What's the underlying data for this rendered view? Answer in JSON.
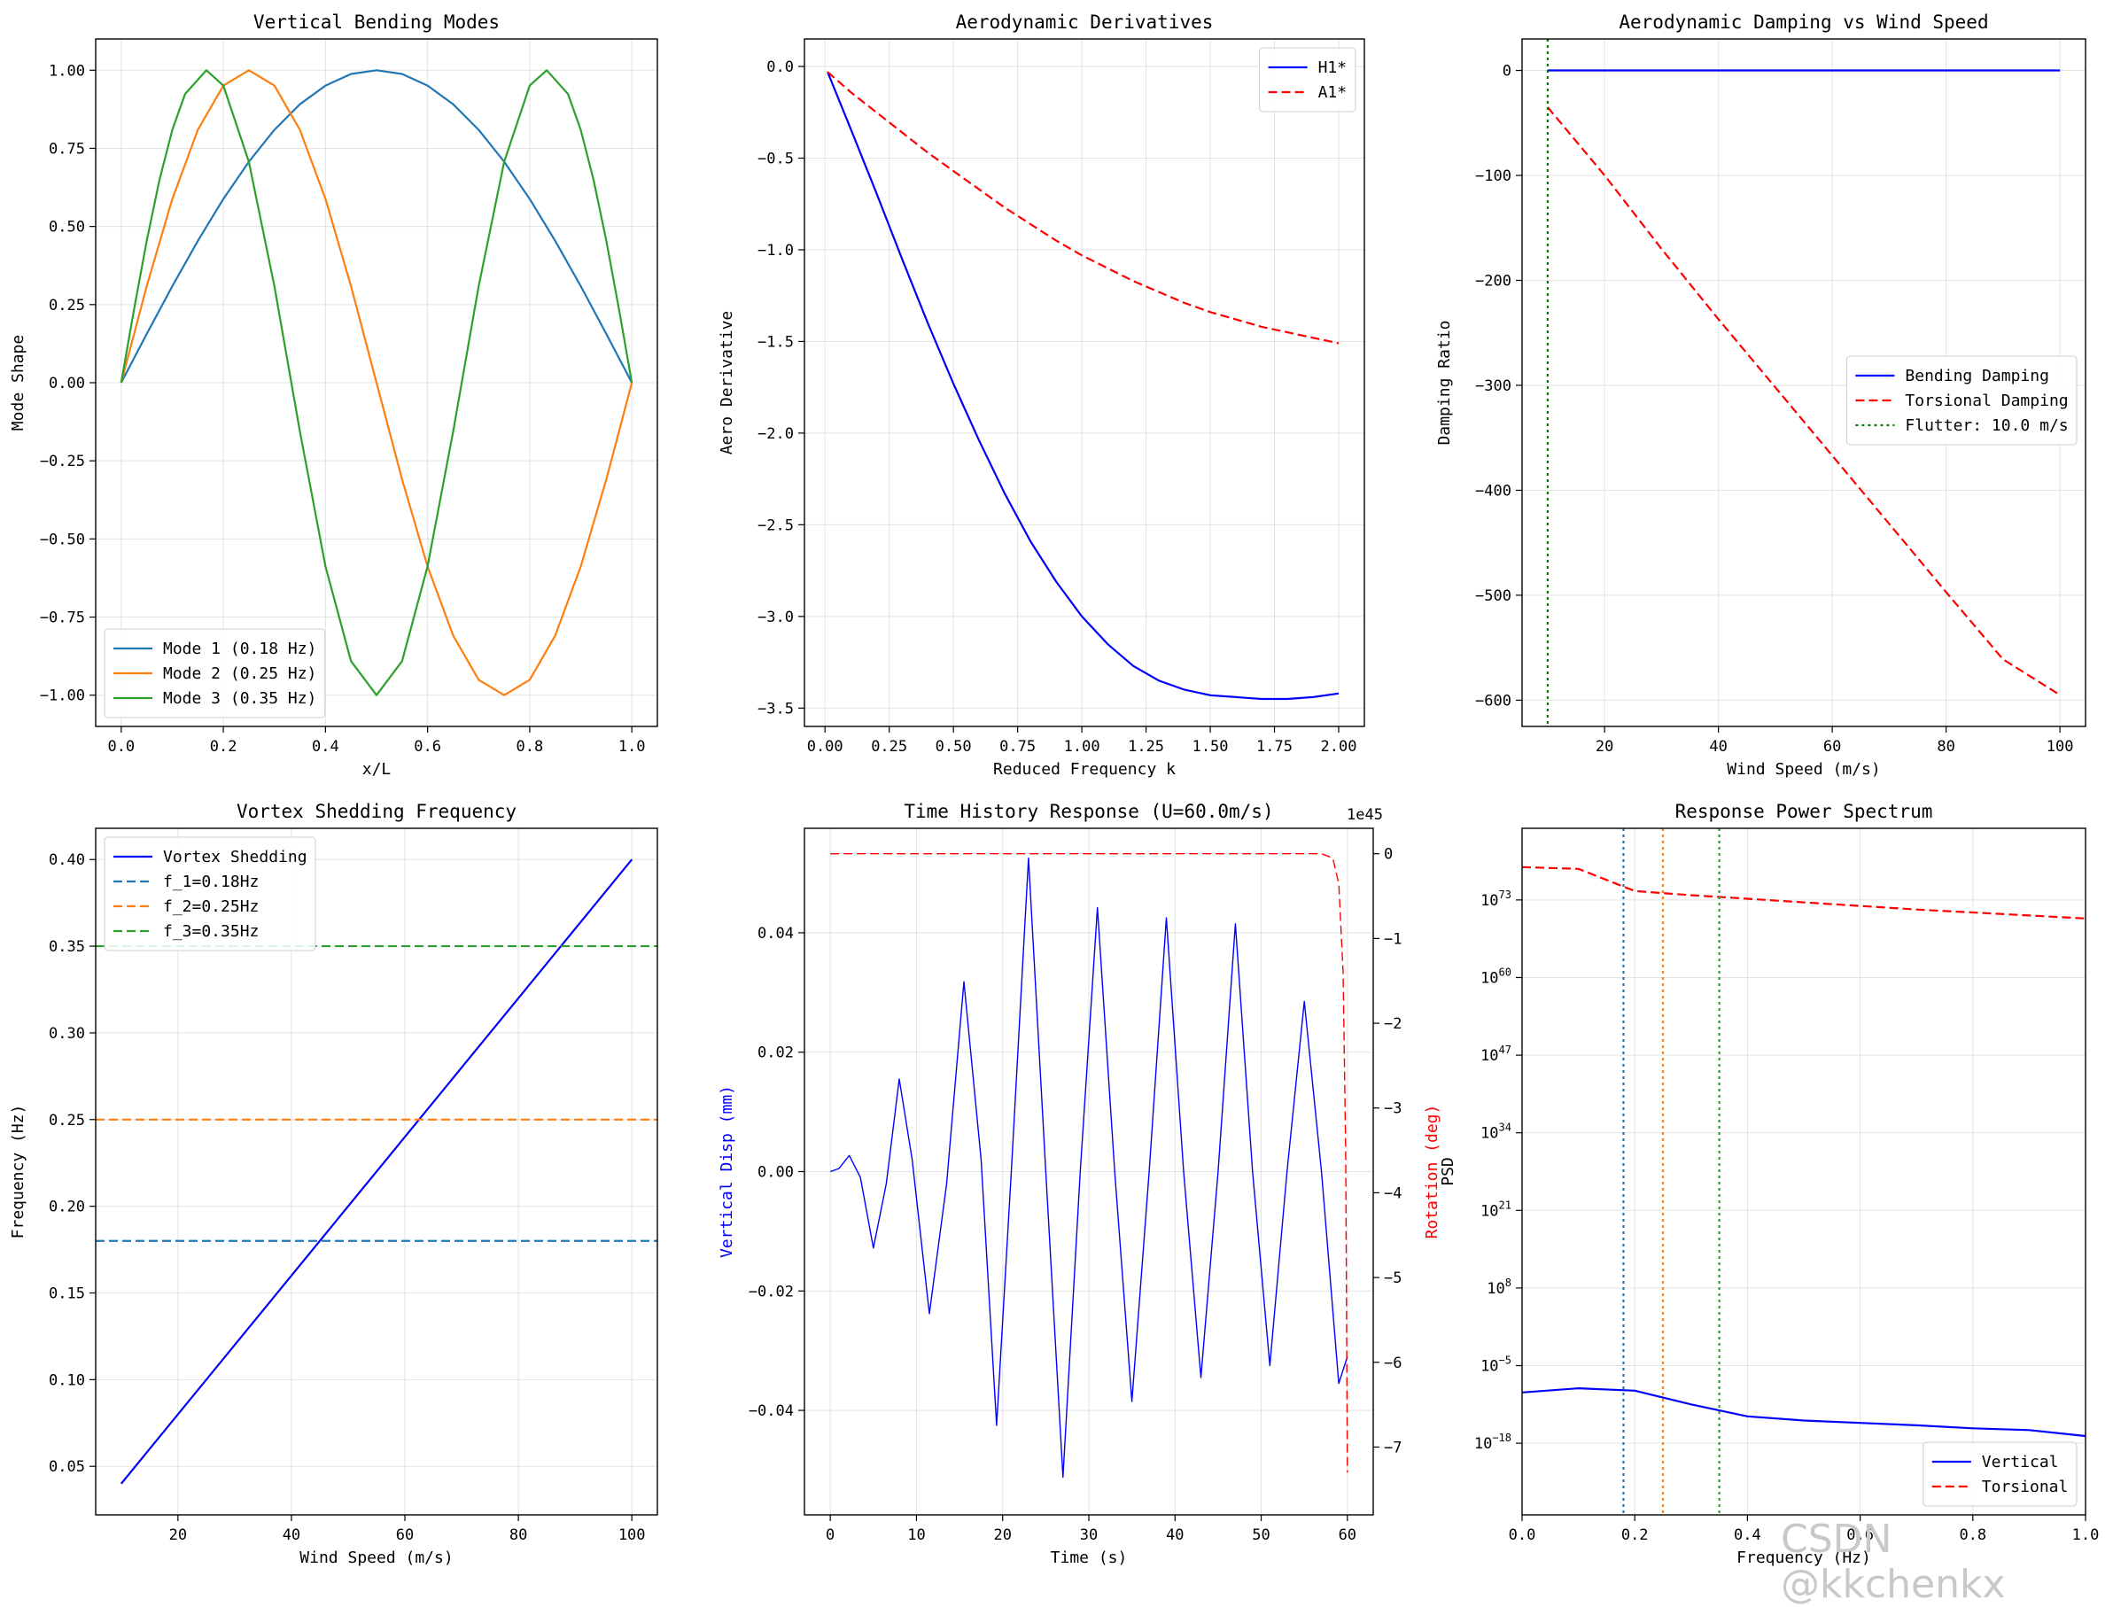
{
  "watermark": "CSDN @kkchenkx",
  "chart_data": [
    {
      "id": "vertical-bending-modes",
      "type": "line",
      "title": "Vertical Bending Modes",
      "xlabel": "x/L",
      "ylabel": "Mode Shape",
      "xlim": [
        -0.05,
        1.05
      ],
      "ylim": [
        -1.1,
        1.1
      ],
      "xticks": [
        0.0,
        0.2,
        0.4,
        0.6,
        0.8,
        1.0
      ],
      "xtick_labels": [
        "0.0",
        "0.2",
        "0.4",
        "0.6",
        "0.8",
        "1.0"
      ],
      "yticks": [
        1.0,
        0.75,
        0.5,
        0.25,
        0.0,
        -0.25,
        -0.5,
        -0.75,
        -1.0
      ],
      "ytick_labels": [
        "1.00",
        "0.75",
        "0.50",
        "0.25",
        "0.00",
        "−0.25",
        "−0.50",
        "−0.75",
        "−1.00"
      ],
      "grid": true,
      "legend": "lower-left",
      "series": [
        {
          "name": "Mode 1 (0.18 Hz)",
          "color": "#1f77b4",
          "style": "solid",
          "x": [
            0,
            0.05,
            0.1,
            0.15,
            0.2,
            0.25,
            0.3,
            0.35,
            0.4,
            0.45,
            0.5,
            0.55,
            0.6,
            0.65,
            0.7,
            0.75,
            0.8,
            0.85,
            0.9,
            0.95,
            1.0
          ],
          "y": [
            0,
            0.156,
            0.309,
            0.454,
            0.588,
            0.707,
            0.809,
            0.891,
            0.951,
            0.988,
            1.0,
            0.988,
            0.951,
            0.891,
            0.809,
            0.707,
            0.588,
            0.454,
            0.309,
            0.156,
            0
          ]
        },
        {
          "name": "Mode 2 (0.25 Hz)",
          "color": "#ff7f0e",
          "style": "solid",
          "x": [
            0,
            0.05,
            0.1,
            0.15,
            0.2,
            0.25,
            0.3,
            0.35,
            0.4,
            0.45,
            0.5,
            0.55,
            0.6,
            0.65,
            0.7,
            0.75,
            0.8,
            0.85,
            0.9,
            0.95,
            1.0
          ],
          "y": [
            0,
            0.309,
            0.588,
            0.809,
            0.951,
            1.0,
            0.951,
            0.809,
            0.588,
            0.309,
            0,
            -0.309,
            -0.588,
            -0.809,
            -0.951,
            -1.0,
            -0.951,
            -0.809,
            -0.588,
            -0.309,
            0
          ]
        },
        {
          "name": "Mode 3 (0.35 Hz)",
          "color": "#2ca02c",
          "style": "solid",
          "x": [
            0,
            0.025,
            0.05,
            0.075,
            0.1,
            0.125,
            0.1667,
            0.2,
            0.25,
            0.3,
            0.35,
            0.4,
            0.45,
            0.5,
            0.55,
            0.6,
            0.65,
            0.7,
            0.75,
            0.8,
            0.8333,
            0.875,
            0.9,
            0.925,
            0.95,
            0.975,
            1.0
          ],
          "y": [
            0,
            0.233,
            0.454,
            0.649,
            0.809,
            0.924,
            1.0,
            0.951,
            0.707,
            0.309,
            -0.156,
            -0.588,
            -0.891,
            -1.0,
            -0.891,
            -0.588,
            -0.156,
            0.309,
            0.707,
            0.951,
            1.0,
            0.924,
            0.809,
            0.649,
            0.454,
            0.233,
            0
          ]
        }
      ]
    },
    {
      "id": "aerodynamic-derivatives",
      "type": "line",
      "title": "Aerodynamic Derivatives",
      "xlabel": "Reduced Frequency k",
      "ylabel": "Aero Derivative",
      "xlim": [
        -0.08,
        2.1
      ],
      "ylim": [
        -3.6,
        0.15
      ],
      "xticks": [
        0.0,
        0.25,
        0.5,
        0.75,
        1.0,
        1.25,
        1.5,
        1.75,
        2.0
      ],
      "xtick_labels": [
        "0.00",
        "0.25",
        "0.50",
        "0.75",
        "1.00",
        "1.25",
        "1.50",
        "1.75",
        "2.00"
      ],
      "yticks": [
        0.0,
        -0.5,
        -1.0,
        -1.5,
        -2.0,
        -2.5,
        -3.0,
        -3.5
      ],
      "ytick_labels": [
        "0.0",
        "−0.5",
        "−1.0",
        "−1.5",
        "−2.0",
        "−2.5",
        "−3.0",
        "−3.5"
      ],
      "grid": true,
      "legend": "top-right",
      "series": [
        {
          "name": "H1*",
          "color": "#0000ff",
          "style": "solid",
          "x": [
            0.01,
            0.1,
            0.2,
            0.3,
            0.4,
            0.5,
            0.6,
            0.7,
            0.8,
            0.9,
            1.0,
            1.1,
            1.2,
            1.3,
            1.4,
            1.5,
            1.6,
            1.7,
            1.8,
            1.9,
            2.0
          ],
          "y": [
            -0.03,
            -0.34,
            -0.69,
            -1.05,
            -1.4,
            -1.73,
            -2.04,
            -2.33,
            -2.59,
            -2.81,
            -3.0,
            -3.15,
            -3.27,
            -3.35,
            -3.4,
            -3.43,
            -3.44,
            -3.45,
            -3.45,
            -3.44,
            -3.42
          ]
        },
        {
          "name": "A1*",
          "color": "#ff0000",
          "style": "dashed",
          "x": [
            0.01,
            0.1,
            0.2,
            0.3,
            0.4,
            0.5,
            0.6,
            0.7,
            0.8,
            0.9,
            1.0,
            1.1,
            1.2,
            1.3,
            1.4,
            1.5,
            1.6,
            1.7,
            1.8,
            1.9,
            2.0
          ],
          "y": [
            -0.03,
            -0.14,
            -0.25,
            -0.36,
            -0.47,
            -0.57,
            -0.67,
            -0.77,
            -0.86,
            -0.95,
            -1.03,
            -1.1,
            -1.17,
            -1.23,
            -1.29,
            -1.34,
            -1.38,
            -1.42,
            -1.45,
            -1.48,
            -1.51
          ]
        }
      ]
    },
    {
      "id": "aerodynamic-damping",
      "type": "line",
      "title": "Aerodynamic Damping vs Wind Speed",
      "xlabel": "Wind Speed (m/s)",
      "ylabel": "Damping Ratio",
      "xlim": [
        5.5,
        104.5
      ],
      "ylim": [
        -625,
        30
      ],
      "xticks": [
        20,
        40,
        60,
        80,
        100
      ],
      "xtick_labels": [
        "20",
        "40",
        "60",
        "80",
        "100"
      ],
      "yticks": [
        0,
        -100,
        -200,
        -300,
        -400,
        -500,
        -600
      ],
      "ytick_labels": [
        "0",
        "−100",
        "−200",
        "−300",
        "−400",
        "−500",
        "−600"
      ],
      "grid": true,
      "legend": "center-right",
      "series": [
        {
          "name": "Bending Damping",
          "color": "#0000ff",
          "style": "solid",
          "x": [
            10,
            100
          ],
          "y": [
            0,
            0
          ]
        },
        {
          "name": "Torsional Damping",
          "color": "#ff0000",
          "style": "dashed",
          "x": [
            10,
            20,
            30,
            40,
            50,
            60,
            70,
            80,
            90,
            100
          ],
          "y": [
            -35,
            -100,
            -170,
            -237,
            -302,
            -367,
            -432,
            -497,
            -561,
            -595
          ]
        },
        {
          "name": "Flutter: 10.0 m/s",
          "color": "#008000",
          "style": "dotted",
          "vline": 10
        }
      ]
    },
    {
      "id": "vortex-shedding",
      "type": "line",
      "title": "Vortex Shedding Frequency",
      "xlabel": "Wind Speed (m/s)",
      "ylabel": "Frequency (Hz)",
      "xlim": [
        5.5,
        104.5
      ],
      "ylim": [
        0.022,
        0.418
      ],
      "xticks": [
        20,
        40,
        60,
        80,
        100
      ],
      "xtick_labels": [
        "20",
        "40",
        "60",
        "80",
        "100"
      ],
      "yticks": [
        0.05,
        0.1,
        0.15,
        0.2,
        0.25,
        0.3,
        0.35,
        0.4
      ],
      "ytick_labels": [
        "0.05",
        "0.10",
        "0.15",
        "0.20",
        "0.25",
        "0.30",
        "0.35",
        "0.40"
      ],
      "grid": true,
      "legend": "top-left",
      "series": [
        {
          "name": "Vortex Shedding",
          "color": "#0000ff",
          "style": "solid",
          "x": [
            10,
            100
          ],
          "y": [
            0.04,
            0.4
          ]
        },
        {
          "name": "f_1=0.18Hz",
          "color": "#1f77b4",
          "style": "dashed",
          "hline": 0.18
        },
        {
          "name": "f_2=0.25Hz",
          "color": "#ff7f0e",
          "style": "dashed",
          "hline": 0.25
        },
        {
          "name": "f_3=0.35Hz",
          "color": "#2ca02c",
          "style": "dashed",
          "hline": 0.35
        }
      ]
    },
    {
      "id": "time-history",
      "type": "line",
      "title": "Time History Response (U=60.0m/s)",
      "xlabel": "Time (s)",
      "ylabel": "Vertical Disp (mm)",
      "y2label": "Rotation (deg)",
      "y2_offset_text": "1e45",
      "xlim": [
        -3,
        63
      ],
      "ylim": [
        -0.0575,
        0.0575
      ],
      "y2lim": [
        -7.8,
        0.3
      ],
      "xticks": [
        0,
        10,
        20,
        30,
        40,
        50,
        60
      ],
      "xtick_labels": [
        "0",
        "10",
        "20",
        "30",
        "40",
        "50",
        "60"
      ],
      "yticks": [
        0.04,
        0.02,
        0.0,
        -0.02,
        -0.04
      ],
      "ytick_labels": [
        "0.04",
        "0.02",
        "0.00",
        "−0.02",
        "−0.04"
      ],
      "y2ticks": [
        0,
        -1,
        -2,
        -3,
        -4,
        -5,
        -6,
        -7
      ],
      "y2tick_labels": [
        "0",
        "−1",
        "−2",
        "−3",
        "−4",
        "−5",
        "−6",
        "−7"
      ],
      "grid": true,
      "series": [
        {
          "name": "Vertical Disp",
          "color": "#0000ff",
          "style": "solid",
          "axis": "left",
          "x": [
            0,
            1,
            2.2,
            3.5,
            5,
            6.5,
            8,
            9.5,
            11.5,
            13.5,
            15.5,
            17.5,
            19.3,
            21,
            23,
            25,
            27,
            29,
            31,
            33,
            35,
            37,
            39,
            41,
            43,
            45,
            47,
            49,
            51,
            53,
            55,
            57,
            59,
            60
          ],
          "y": [
            0,
            0.0005,
            0.0027,
            -0.001,
            -0.0128,
            -0.002,
            0.0155,
            0.002,
            -0.0238,
            -0.002,
            0.0318,
            0.002,
            -0.0425,
            0.0,
            0.0525,
            0.0,
            -0.0512,
            0.0,
            0.0442,
            0.0,
            -0.0385,
            0.0,
            0.0425,
            0.0,
            -0.0345,
            0.0,
            0.0415,
            0.0,
            -0.0325,
            0.0,
            0.0285,
            0.0,
            -0.0355,
            -0.031
          ]
        },
        {
          "name": "Rotation",
          "color": "#ff0000",
          "style": "dashed",
          "axis": "right",
          "x": [
            0,
            10,
            20,
            30,
            40,
            50,
            57,
            58.3,
            59,
            59.5,
            59.8,
            60
          ],
          "y": [
            0,
            0,
            0,
            0,
            0,
            0,
            0,
            -0.05,
            -0.35,
            -1.4,
            -3.5,
            -7.3
          ]
        }
      ]
    },
    {
      "id": "power-spectrum",
      "type": "line",
      "title": "Response Power Spectrum",
      "xlabel": "Frequency (Hz)",
      "ylabel": "PSD",
      "yscale": "log",
      "xlim": [
        0.0,
        1.0
      ],
      "ylim_exp": [
        -30,
        85
      ],
      "xticks": [
        0.0,
        0.2,
        0.4,
        0.6,
        0.8,
        1.0
      ],
      "xtick_labels": [
        "0.0",
        "0.2",
        "0.4",
        "0.6",
        "0.8",
        "1.0"
      ],
      "yticks_exp": [
        73,
        60,
        47,
        34,
        21,
        8,
        -5,
        -18
      ],
      "ytick_labels": [
        "10^73",
        "10^60",
        "10^47",
        "10^34",
        "10^21",
        "10^8",
        "10^−5",
        "10^−18"
      ],
      "grid": true,
      "legend": "lower-right",
      "series": [
        {
          "name": "Vertical",
          "color": "#0000ff",
          "style": "solid",
          "x": [
            0.0,
            0.1,
            0.2,
            0.3,
            0.4,
            0.5,
            0.6,
            0.7,
            0.8,
            0.9,
            1.0
          ],
          "y_exp": [
            -9.5,
            -8.8,
            -9.2,
            -11.5,
            -13.5,
            -14.2,
            -14.6,
            -15.0,
            -15.5,
            -15.8,
            -16.8
          ]
        },
        {
          "name": "Torsional",
          "color": "#ff0000",
          "style": "dashed",
          "x": [
            0.0,
            0.1,
            0.2,
            0.3,
            0.4,
            0.5,
            0.6,
            0.7,
            0.8,
            0.9,
            1.0
          ],
          "y_exp": [
            78.5,
            78.2,
            74.5,
            73.8,
            73.2,
            72.6,
            72.0,
            71.4,
            70.9,
            70.4,
            69.9
          ]
        },
        {
          "name": "f1 marker",
          "color": "#1f77b4",
          "style": "dotted",
          "vline": 0.18,
          "legend": false
        },
        {
          "name": "f2 marker",
          "color": "#ff7f0e",
          "style": "dotted",
          "vline": 0.25,
          "legend": false
        },
        {
          "name": "f3 marker",
          "color": "#2ca02c",
          "style": "dotted",
          "vline": 0.35,
          "legend": false
        }
      ]
    }
  ]
}
